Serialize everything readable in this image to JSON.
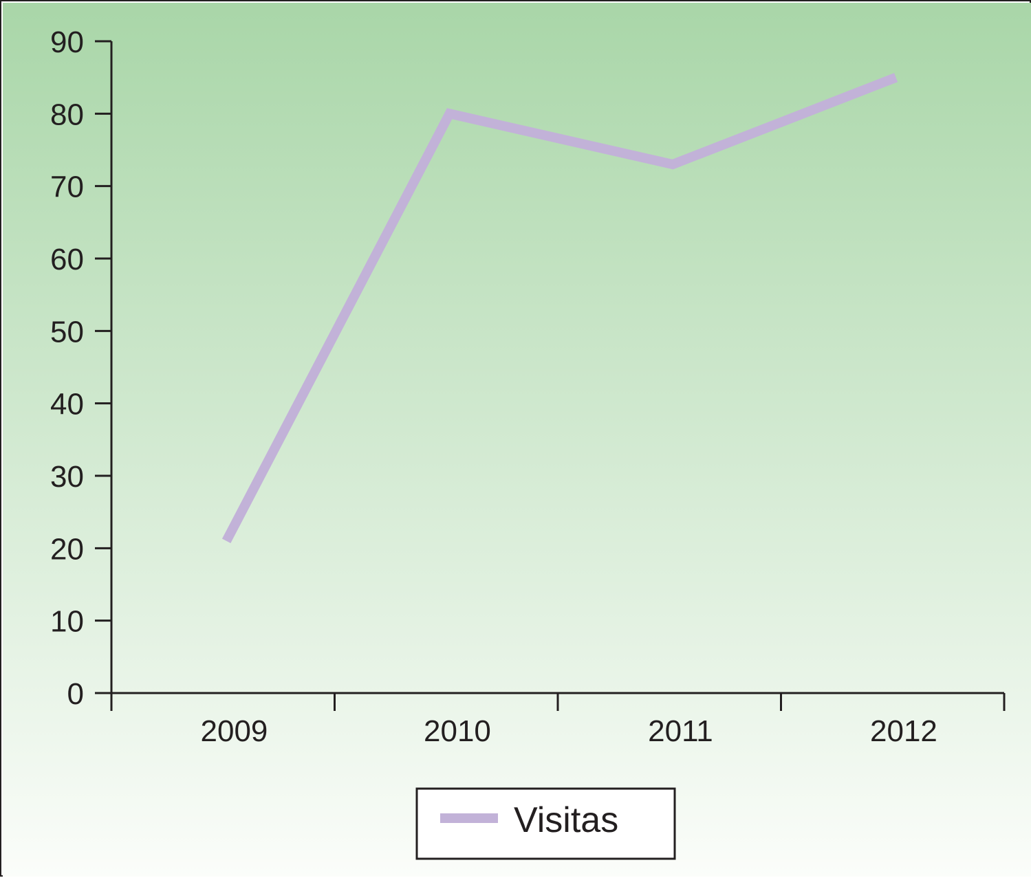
{
  "colors": {
    "background_top": "#a9d6a8",
    "background_bottom": "#fbfdfa",
    "series_line": "#c2b2d8",
    "axis": "#231f20"
  },
  "chart_data": {
    "type": "line",
    "title": "",
    "xlabel": "",
    "ylabel": "",
    "categories": [
      "2009",
      "2010",
      "2011",
      "2012"
    ],
    "series": [
      {
        "name": "Visitas",
        "values": [
          21,
          80,
          73,
          85
        ]
      }
    ],
    "ylim": [
      0,
      90
    ],
    "yticks": [
      0,
      10,
      20,
      30,
      40,
      50,
      60,
      70,
      80,
      90
    ],
    "grid": false,
    "legend": "bottom-center"
  }
}
